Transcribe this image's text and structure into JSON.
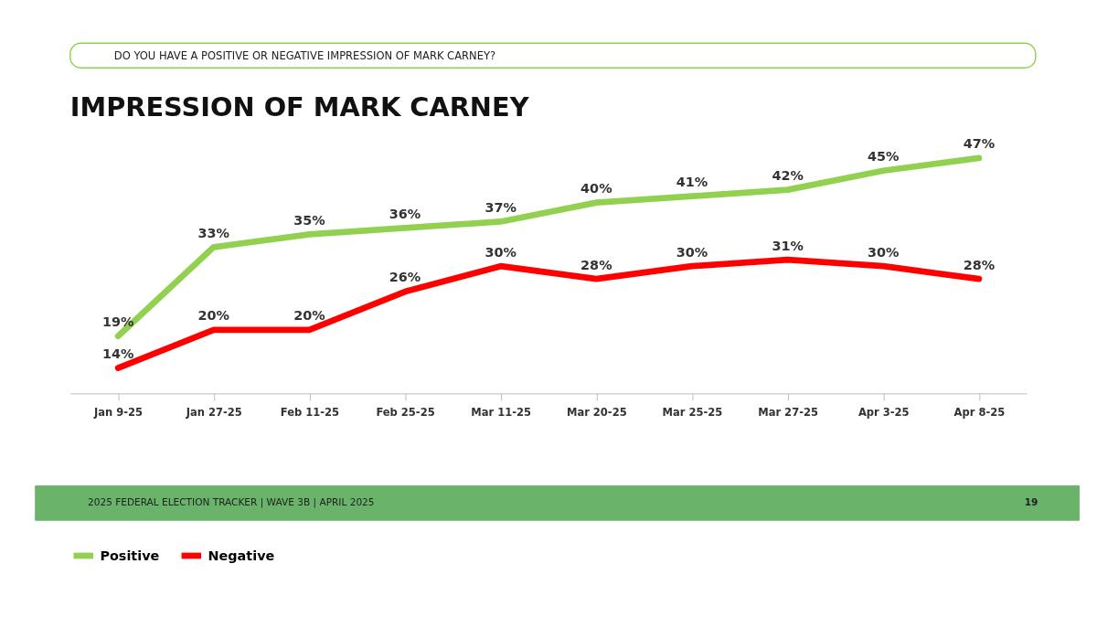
{
  "chart_data": {
    "type": "line",
    "title": "IMPRESSION OF MARK CARNEY",
    "subtitle": "DO YOU HAVE A POSITIVE OR NEGATIVE IMPRESSION OF MARK CARNEY?",
    "categories": [
      "Jan 9-25",
      "Jan 27-25",
      "Feb 11-25",
      "Feb 25-25",
      "Mar 11-25",
      "Mar 20-25",
      "Mar 25-25",
      "Mar 27-25",
      "Apr 3-25",
      "Apr 8-25"
    ],
    "series": [
      {
        "name": "Positive",
        "color": "#92d050",
        "values": [
          19,
          33,
          35,
          36,
          37,
          40,
          41,
          42,
          45,
          47
        ],
        "value_labels": [
          "19%",
          "33%",
          "35%",
          "36%",
          "37%",
          "40%",
          "41%",
          "42%",
          "45%",
          "47%"
        ]
      },
      {
        "name": "Negative",
        "color": "#ff0000",
        "values": [
          14,
          20,
          20,
          26,
          30,
          28,
          30,
          31,
          30,
          28
        ],
        "value_labels": [
          "14%",
          "20%",
          "20%",
          "26%",
          "30%",
          "28%",
          "30%",
          "31%",
          "30%",
          "28%"
        ]
      }
    ],
    "legend": "bottom",
    "grid": false,
    "marker": "none",
    "line_style": "solid",
    "tick_labels": "x",
    "annotations": [
      "2025 FEDERAL ELECTION TRACKER | WAVE 3B | APRIL 2025",
      "19"
    ]
  }
}
